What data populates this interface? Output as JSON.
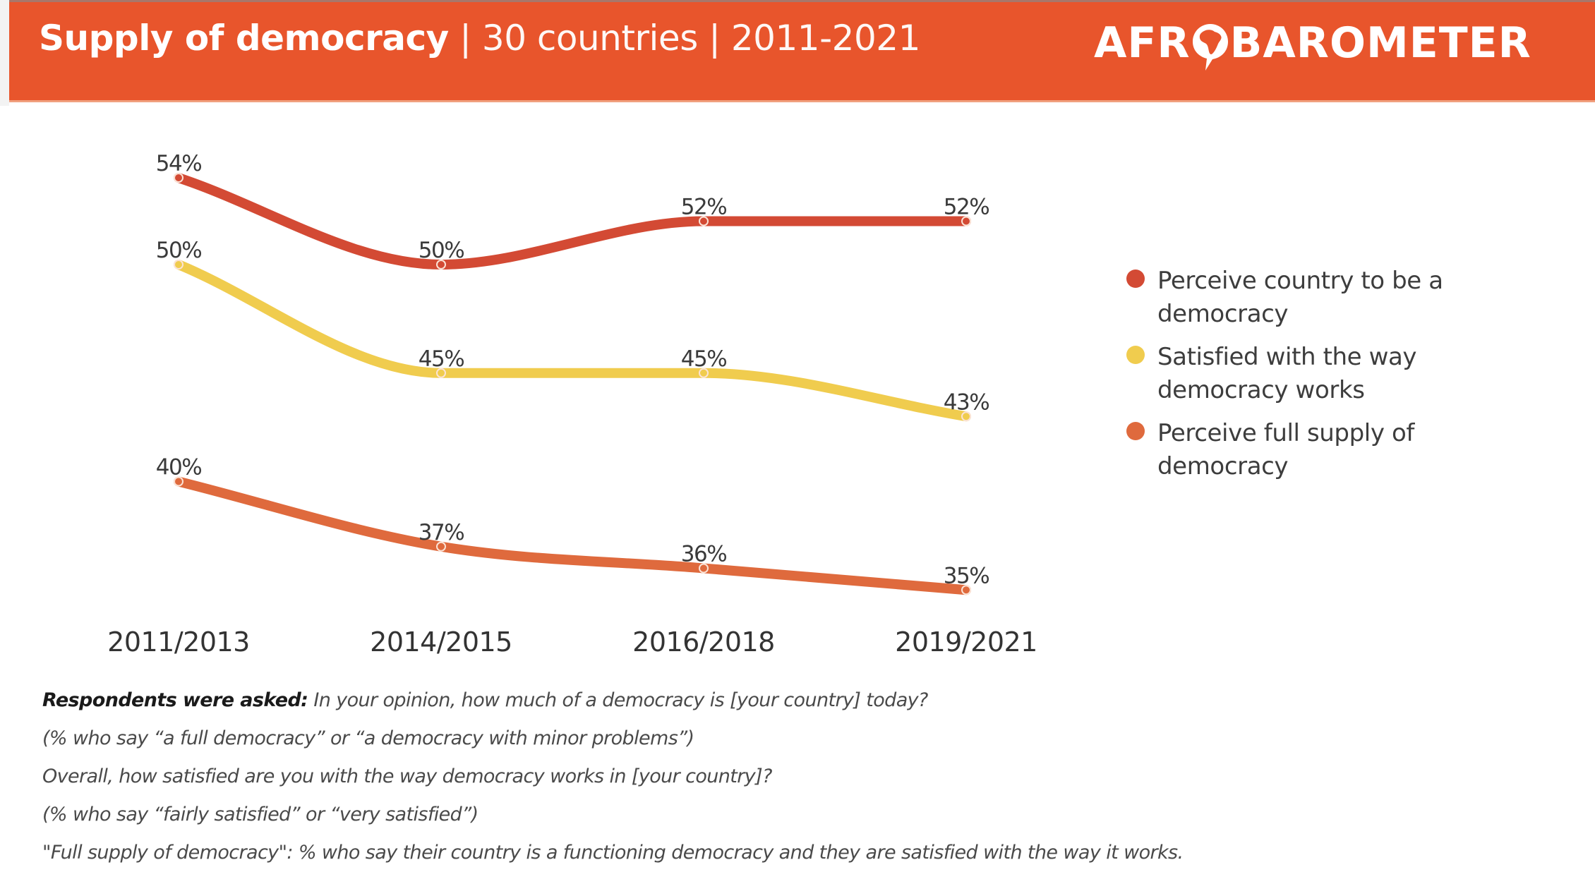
{
  "header": {
    "title_bold": "Supply of democracy",
    "title_rest": " | 30 countries | 2011-2021",
    "logo_left": "AFR",
    "logo_right": "BAROMETER",
    "logo_icon": "africa-speech-pin-icon",
    "background_color": "#E8552C"
  },
  "chart_data": {
    "type": "line",
    "title": "Supply of democracy | 30 countries | 2011-2021",
    "xlabel": "",
    "ylabel": "",
    "categories": [
      "2011/2013",
      "2014/2015",
      "2016/2018",
      "2019/2021"
    ],
    "grid": false,
    "legend_position": "right",
    "value_suffix": "%",
    "series": [
      {
        "name": "Perceive country to be a democracy",
        "color": "#D34A34",
        "values": [
          54,
          50,
          52,
          52
        ]
      },
      {
        "name": "Satisfied with the way democracy works",
        "color": "#F0CC4E",
        "values": [
          50,
          45,
          45,
          43
        ]
      },
      {
        "name": "Perceive full supply of democracy",
        "color": "#DF6A3D",
        "values": [
          40,
          37,
          36,
          35
        ]
      }
    ]
  },
  "legend": {
    "items": [
      {
        "line1": "Perceive country to be a",
        "line2": "democracy",
        "color": "#D34A34"
      },
      {
        "line1": "Satisfied with the way",
        "line2": "democracy works",
        "color": "#F0CC4E"
      },
      {
        "line1": "Perceive full supply of",
        "line2": "democracy",
        "color": "#DF6A3D"
      }
    ]
  },
  "footnotes": {
    "lead": "Respondents were asked:",
    "q1": " In your opinion, how much of a democracy is [your country] today?",
    "q1_note": "(% who say “a full democracy” or “a democracy with minor problems”)",
    "q2": "Overall, how satisfied are you with the way democracy works in [your country]?",
    "q2_note": "(% who say “fairly satisfied” or “very satisfied”)",
    "definition": "\"Full supply of democracy\": % who say their country is a functioning democracy and they are satisfied with the way it works."
  }
}
